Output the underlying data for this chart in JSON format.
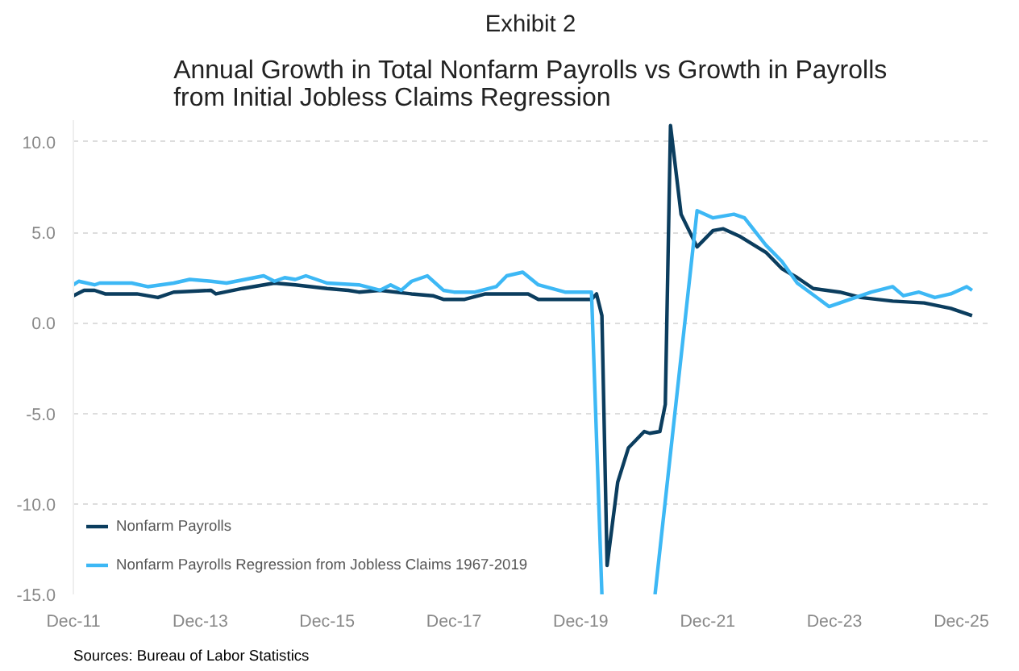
{
  "chart_data": {
    "type": "line",
    "title": "Exhibit 2",
    "subtitle": "Annual Growth in Total Nonfarm Payrolls vs Growth in Payrolls\nfrom Initial Jobless Claims Regression",
    "xlim": [
      "2011-12",
      "2026-05"
    ],
    "xticks": [
      {
        "value": "2011-12",
        "label": "Dec-11"
      },
      {
        "value": "2013-12",
        "label": "Dec-13"
      },
      {
        "value": "2015-12",
        "label": "Dec-15"
      },
      {
        "value": "2017-12",
        "label": "Dec-17"
      },
      {
        "value": "2019-12",
        "label": "Dec-19"
      },
      {
        "value": "2021-12",
        "label": "Dec-21"
      },
      {
        "value": "2023-12",
        "label": "Dec-23"
      },
      {
        "value": "2025-12",
        "label": "Dec-25"
      }
    ],
    "ylim": [
      -15,
      11.2
    ],
    "yticks": [
      {
        "value": -15,
        "label": "-15.0"
      },
      {
        "value": -10,
        "label": "-10.0"
      },
      {
        "value": -5,
        "label": "-5.0"
      },
      {
        "value": 0,
        "label": "0.0"
      },
      {
        "value": 5,
        "label": "5.0"
      },
      {
        "value": 10,
        "label": "10.0"
      }
    ],
    "grid": "y",
    "legend": "bottom left",
    "marker": "none",
    "line_style": "solid",
    "annotations": [
      "Sources: Bureau of Labor Statistics"
    ],
    "series": [
      {
        "name": "Nonfarm Payrolls",
        "color": "#0b3d5e",
        "x": [
          "2011-12",
          "2012-02",
          "2012-04",
          "2012-06",
          "2012-12",
          "2013-04",
          "2013-07",
          "2014-02",
          "2014-03",
          "2014-08",
          "2015-02",
          "2015-06",
          "2015-12",
          "2016-04",
          "2016-06",
          "2016-10",
          "2017-04",
          "2017-08",
          "2017-10",
          "2018-02",
          "2018-06",
          "2018-11",
          "2019-02",
          "2019-04",
          "2020-02",
          "2020-03",
          "2020-04",
          "2020-05",
          "2020-07",
          "2020-09",
          "2020-12",
          "2021-01",
          "2021-03",
          "2021-04",
          "2021-05",
          "2021-07",
          "2021-10",
          "2022-01",
          "2022-03",
          "2022-06",
          "2022-11",
          "2023-02",
          "2023-05",
          "2023-08",
          "2024-01",
          "2024-05",
          "2024-11",
          "2025-05",
          "2025-10",
          "2026-02"
        ],
        "values": [
          1.5,
          1.8,
          1.8,
          1.6,
          1.6,
          1.4,
          1.7,
          1.8,
          1.6,
          1.9,
          2.2,
          2.1,
          1.9,
          1.8,
          1.7,
          1.8,
          1.6,
          1.5,
          1.3,
          1.3,
          1.6,
          1.6,
          1.6,
          1.3,
          1.3,
          1.6,
          0.4,
          -13.4,
          -8.8,
          -6.9,
          -6.0,
          -6.1,
          -6.0,
          -4.5,
          10.9,
          6.0,
          4.2,
          5.1,
          5.2,
          4.8,
          3.9,
          3.0,
          2.5,
          1.9,
          1.7,
          1.4,
          1.2,
          1.1,
          0.8,
          0.4
        ]
      },
      {
        "name": "Nonfarm Payrolls Regression from Jobless Claims 1967-2019",
        "color": "#3db8f5",
        "x": [
          "2011-12",
          "2012-01",
          "2012-04",
          "2012-05",
          "2012-11",
          "2013-02",
          "2013-07",
          "2013-10",
          "2014-02",
          "2014-05",
          "2014-12",
          "2015-02",
          "2015-04",
          "2015-06",
          "2015-08",
          "2015-12",
          "2016-06",
          "2016-10",
          "2016-12",
          "2017-02",
          "2017-04",
          "2017-07",
          "2017-10",
          "2017-12",
          "2018-04",
          "2018-08",
          "2018-10",
          "2019-01",
          "2019-04",
          "2019-09",
          "2020-02",
          "2020-04",
          "2020-09",
          "2021-02",
          "2021-10",
          "2022-01",
          "2022-05",
          "2022-07",
          "2022-11",
          "2023-02",
          "2023-05",
          "2023-11",
          "2024-03",
          "2024-07",
          "2024-11",
          "2025-01",
          "2025-04",
          "2025-07",
          "2025-10",
          "2026-01",
          "2026-02"
        ],
        "values": [
          2.1,
          2.3,
          2.1,
          2.2,
          2.2,
          2.0,
          2.2,
          2.4,
          2.3,
          2.2,
          2.6,
          2.3,
          2.5,
          2.4,
          2.6,
          2.2,
          2.1,
          1.8,
          2.1,
          1.8,
          2.3,
          2.6,
          1.8,
          1.7,
          1.7,
          2.0,
          2.6,
          2.8,
          2.1,
          1.7,
          1.7,
          -15,
          null,
          -15,
          6.2,
          5.8,
          6.0,
          5.8,
          4.3,
          3.4,
          2.2,
          0.9,
          1.3,
          1.7,
          2.0,
          1.5,
          1.7,
          1.4,
          1.6,
          2.0,
          1.8
        ]
      }
    ]
  }
}
